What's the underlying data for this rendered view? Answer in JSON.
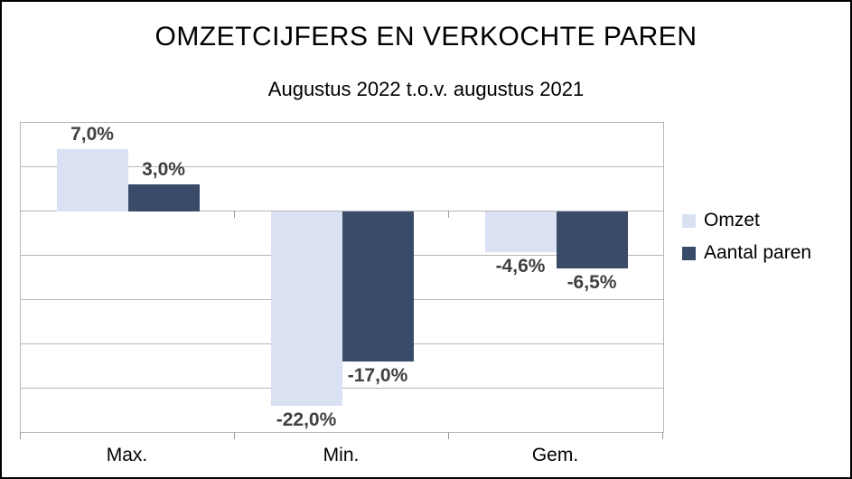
{
  "header": {
    "title": "OMZETCIJFERS EN VERKOCHTE PAREN",
    "subtitle": "Augustus 2022 t.o.v. augustus 2021"
  },
  "chart_data": {
    "type": "bar",
    "categories": [
      "Max.",
      "Min.",
      "Gem."
    ],
    "series": [
      {
        "name": "Omzet",
        "color": "#d9e1f2",
        "values": [
          7.0,
          -22.0,
          -4.6
        ],
        "labels": [
          "7,0%",
          "-22,0%",
          "-4,6%"
        ]
      },
      {
        "name": "Aantal paren",
        "color": "#3a4b69",
        "values": [
          3.0,
          -17.0,
          -6.5
        ],
        "labels": [
          "3,0%",
          "-17,0%",
          "-6,5%"
        ]
      }
    ],
    "title": "OMZETCIJFERS EN VERKOCHTE PAREN",
    "subtitle": "Augustus 2022 t.o.v. augustus 2021",
    "xlabel": "",
    "ylabel": "",
    "ylim": [
      -25,
      10
    ],
    "grid_step": 5,
    "grid": "horizontal-only",
    "y_axis_labels_visible": false,
    "legend_position": "right",
    "data_labels": "outside-end, Dutch decimal comma, percent"
  },
  "legend": {
    "items": [
      {
        "label": "Omzet",
        "color": "#d9e1f2"
      },
      {
        "label": "Aantal paren",
        "color": "#3a4b69"
      }
    ]
  },
  "colors": {
    "series_omzet": "#d9e1f2",
    "series_aantal_paren": "#3a4b69",
    "gridline": "#b7b7b7",
    "plot_border": "#b7b7b7",
    "data_label_text": "#404040",
    "frame_border": "#000000",
    "background": "#ffffff"
  }
}
